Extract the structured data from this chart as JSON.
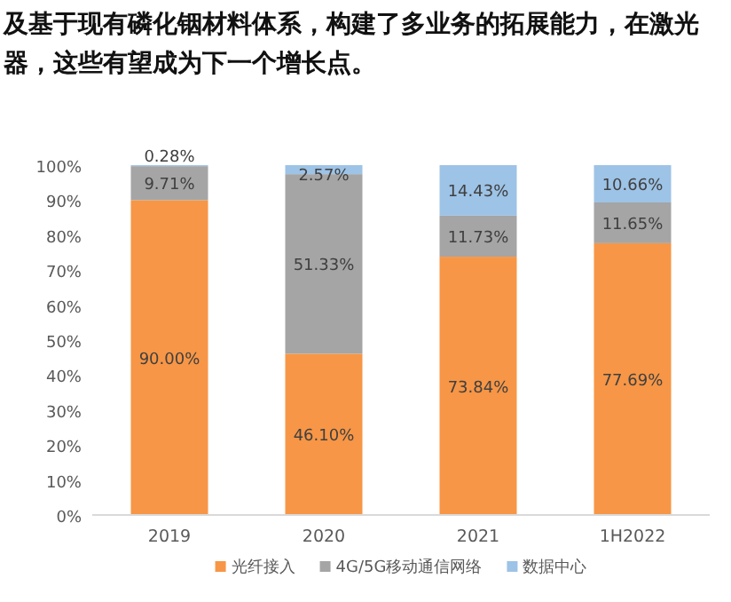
{
  "chart_data": {
    "type": "bar",
    "stacked": true,
    "annotations": [
      "及基于现有磷化铟材料体系，构建了多业务的拓展能力，在激光",
      "器，这些有望成为下一个增长点。"
    ],
    "categories": [
      "2019",
      "2020",
      "2021",
      "1H2022"
    ],
    "series": [
      {
        "name": "光纤接入",
        "color": "#f79646",
        "values": [
          90.0,
          46.1,
          73.84,
          77.69
        ],
        "value_labels": [
          "90.00%",
          "46.10%",
          "73.84%",
          "77.69%"
        ]
      },
      {
        "name": "4G/5G移动通信网络",
        "color": "#a5a5a5",
        "values": [
          9.71,
          51.33,
          11.73,
          11.65
        ],
        "value_labels": [
          "9.71%",
          "51.33%",
          "11.73%",
          "11.65%"
        ]
      },
      {
        "name": "数据中心",
        "color": "#9dc3e6",
        "values": [
          0.28,
          2.57,
          14.43,
          10.66
        ],
        "value_labels": [
          "0.28%",
          "2.57%",
          "14.43%",
          "10.66%"
        ]
      }
    ],
    "ylim": [
      0,
      100
    ],
    "yticks": [
      {
        "value": 0,
        "label": "0%"
      },
      {
        "value": 10,
        "label": "10%"
      },
      {
        "value": 20,
        "label": "20%"
      },
      {
        "value": 30,
        "label": "30%"
      },
      {
        "value": 40,
        "label": "40%"
      },
      {
        "value": 50,
        "label": "50%"
      },
      {
        "value": 60,
        "label": "60%"
      },
      {
        "value": 70,
        "label": "70%"
      },
      {
        "value": 80,
        "label": "80%"
      },
      {
        "value": 90,
        "label": "90%"
      },
      {
        "value": 100,
        "label": "100%"
      }
    ],
    "grid": false,
    "legend": "bottom"
  }
}
